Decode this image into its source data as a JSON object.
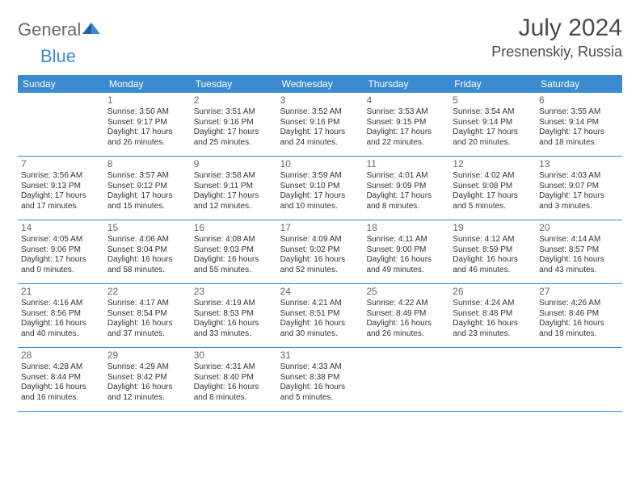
{
  "logo": {
    "word1": "General",
    "word2": "Blue"
  },
  "title": "July 2024",
  "location": "Presnenskiy, Russia",
  "days_of_week": [
    "Sunday",
    "Monday",
    "Tuesday",
    "Wednesday",
    "Thursday",
    "Friday",
    "Saturday"
  ],
  "colors": {
    "accent": "#3b8bd0",
    "text": "#333333",
    "title_text": "#4a4a4a",
    "logo_gray": "#6b6b6b",
    "background": "#ffffff"
  },
  "layout": {
    "first_weekday_index": 1,
    "rows": 5,
    "cols": 7
  },
  "days": {
    "1": {
      "sunrise": "3:50 AM",
      "sunset": "9:17 PM",
      "daylight_h": 17,
      "daylight_m": 26
    },
    "2": {
      "sunrise": "3:51 AM",
      "sunset": "9:16 PM",
      "daylight_h": 17,
      "daylight_m": 25
    },
    "3": {
      "sunrise": "3:52 AM",
      "sunset": "9:16 PM",
      "daylight_h": 17,
      "daylight_m": 24
    },
    "4": {
      "sunrise": "3:53 AM",
      "sunset": "9:15 PM",
      "daylight_h": 17,
      "daylight_m": 22
    },
    "5": {
      "sunrise": "3:54 AM",
      "sunset": "9:14 PM",
      "daylight_h": 17,
      "daylight_m": 20
    },
    "6": {
      "sunrise": "3:55 AM",
      "sunset": "9:14 PM",
      "daylight_h": 17,
      "daylight_m": 18
    },
    "7": {
      "sunrise": "3:56 AM",
      "sunset": "9:13 PM",
      "daylight_h": 17,
      "daylight_m": 17
    },
    "8": {
      "sunrise": "3:57 AM",
      "sunset": "9:12 PM",
      "daylight_h": 17,
      "daylight_m": 15
    },
    "9": {
      "sunrise": "3:58 AM",
      "sunset": "9:11 PM",
      "daylight_h": 17,
      "daylight_m": 12
    },
    "10": {
      "sunrise": "3:59 AM",
      "sunset": "9:10 PM",
      "daylight_h": 17,
      "daylight_m": 10
    },
    "11": {
      "sunrise": "4:01 AM",
      "sunset": "9:09 PM",
      "daylight_h": 17,
      "daylight_m": 8
    },
    "12": {
      "sunrise": "4:02 AM",
      "sunset": "9:08 PM",
      "daylight_h": 17,
      "daylight_m": 5
    },
    "13": {
      "sunrise": "4:03 AM",
      "sunset": "9:07 PM",
      "daylight_h": 17,
      "daylight_m": 3
    },
    "14": {
      "sunrise": "4:05 AM",
      "sunset": "9:06 PM",
      "daylight_h": 17,
      "daylight_m": 0
    },
    "15": {
      "sunrise": "4:06 AM",
      "sunset": "9:04 PM",
      "daylight_h": 16,
      "daylight_m": 58
    },
    "16": {
      "sunrise": "4:08 AM",
      "sunset": "9:03 PM",
      "daylight_h": 16,
      "daylight_m": 55
    },
    "17": {
      "sunrise": "4:09 AM",
      "sunset": "9:02 PM",
      "daylight_h": 16,
      "daylight_m": 52
    },
    "18": {
      "sunrise": "4:11 AM",
      "sunset": "9:00 PM",
      "daylight_h": 16,
      "daylight_m": 49
    },
    "19": {
      "sunrise": "4:12 AM",
      "sunset": "8:59 PM",
      "daylight_h": 16,
      "daylight_m": 46
    },
    "20": {
      "sunrise": "4:14 AM",
      "sunset": "8:57 PM",
      "daylight_h": 16,
      "daylight_m": 43
    },
    "21": {
      "sunrise": "4:16 AM",
      "sunset": "8:56 PM",
      "daylight_h": 16,
      "daylight_m": 40
    },
    "22": {
      "sunrise": "4:17 AM",
      "sunset": "8:54 PM",
      "daylight_h": 16,
      "daylight_m": 37
    },
    "23": {
      "sunrise": "4:19 AM",
      "sunset": "8:53 PM",
      "daylight_h": 16,
      "daylight_m": 33
    },
    "24": {
      "sunrise": "4:21 AM",
      "sunset": "8:51 PM",
      "daylight_h": 16,
      "daylight_m": 30
    },
    "25": {
      "sunrise": "4:22 AM",
      "sunset": "8:49 PM",
      "daylight_h": 16,
      "daylight_m": 26
    },
    "26": {
      "sunrise": "4:24 AM",
      "sunset": "8:48 PM",
      "daylight_h": 16,
      "daylight_m": 23
    },
    "27": {
      "sunrise": "4:26 AM",
      "sunset": "8:46 PM",
      "daylight_h": 16,
      "daylight_m": 19
    },
    "28": {
      "sunrise": "4:28 AM",
      "sunset": "8:44 PM",
      "daylight_h": 16,
      "daylight_m": 16
    },
    "29": {
      "sunrise": "4:29 AM",
      "sunset": "8:42 PM",
      "daylight_h": 16,
      "daylight_m": 12
    },
    "30": {
      "sunrise": "4:31 AM",
      "sunset": "8:40 PM",
      "daylight_h": 16,
      "daylight_m": 8
    },
    "31": {
      "sunrise": "4:33 AM",
      "sunset": "8:38 PM",
      "daylight_h": 16,
      "daylight_m": 5
    }
  },
  "labels": {
    "sunrise_prefix": "Sunrise: ",
    "sunset_prefix": "Sunset: ",
    "daylight_prefix": "Daylight: ",
    "hours_word": " hours",
    "and_word": "and ",
    "minutes_word": " minutes."
  }
}
